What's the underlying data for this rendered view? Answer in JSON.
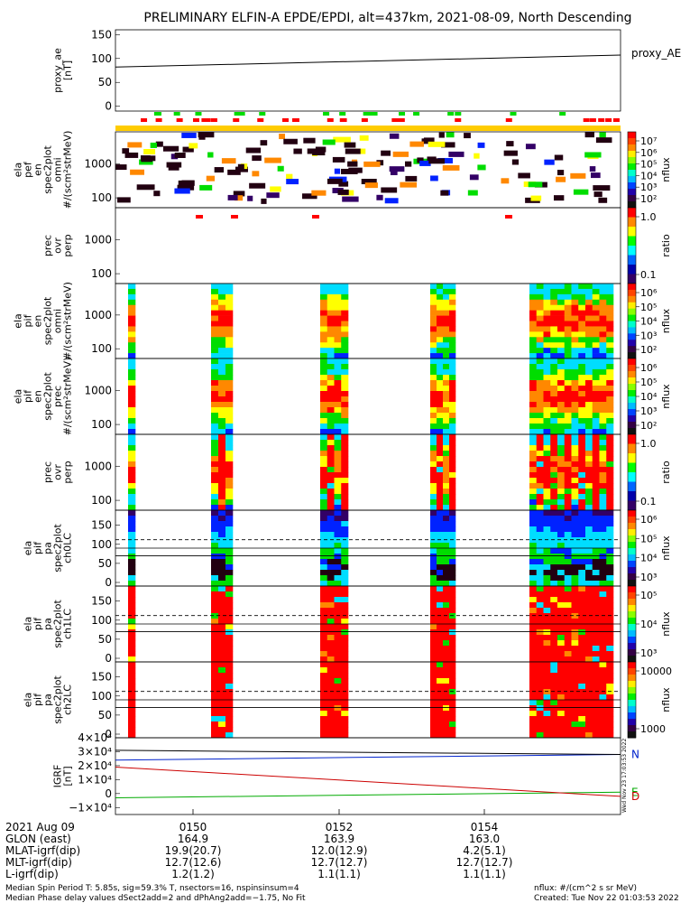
{
  "title": "PRELIMINARY ELFIN-A EPDE/EPDI, alt=437km, 2021-08-09, North Descending",
  "colors": {
    "red": "#ff0000",
    "orange": "#ff8800",
    "yellow": "#ffff00",
    "green": "#00dd00",
    "cyan": "#00ddff",
    "blue": "#0022ff",
    "purple": "#330066",
    "dark": "#220011"
  },
  "chart_data": [
    {
      "id": "proxy_ae",
      "type": "line",
      "ylabel": [
        "proxy_ae",
        "[nT]"
      ],
      "legend": "proxy_AE",
      "yticks": [
        "150",
        "100",
        "50",
        "0"
      ],
      "ylim": [
        -10,
        160
      ],
      "x": [
        "01:48",
        "01:56"
      ],
      "y": [
        82,
        107
      ]
    },
    {
      "id": "ela_pef_en_spec2plot_omni",
      "type": "heatmap",
      "ylabel": [
        "ela",
        "pef",
        "en",
        "spec2plot",
        "omni",
        "#/(scm²strMeV)"
      ],
      "yticks": [
        "1000",
        "100"
      ],
      "colorbar": {
        "label": "nflux",
        "ticks": [
          "10⁷",
          "10⁶",
          "10⁵",
          "10⁴",
          "10³",
          "10²"
        ]
      },
      "note": "sparse scattered pixels"
    },
    {
      "id": "prec_ovr_perp_pef",
      "type": "heatmap",
      "ylabel": [
        "prec",
        "ovr",
        "perp"
      ],
      "yticks": [
        "1000",
        "100"
      ],
      "colorbar": {
        "label": "ratio",
        "ticks": [
          "1.0",
          "0.1"
        ]
      }
    },
    {
      "id": "ela_pif_en_spec2plot_omni",
      "type": "heatmap",
      "ylabel": [
        "ela",
        "pif",
        "en",
        "spec2plot",
        "omni",
        "#/(scm²strMeV)"
      ],
      "yticks": [
        "1000",
        "100"
      ],
      "colorbar": {
        "label": "nflux",
        "ticks": [
          "10⁶",
          "10⁵",
          "10⁴",
          "10³",
          "10²"
        ]
      }
    },
    {
      "id": "ela_pif_en_spec2plot_prec",
      "type": "heatmap",
      "ylabel": [
        "ela",
        "pif",
        "en",
        "spec2plot",
        "prec",
        "#/(scm²strMeV)"
      ],
      "yticks": [
        "1000",
        "100"
      ],
      "colorbar": {
        "label": "nflux",
        "ticks": [
          "10⁶",
          "10⁵",
          "10⁴",
          "10³",
          "10²"
        ]
      }
    },
    {
      "id": "prec_ovr_perp_pif",
      "type": "heatmap",
      "ylabel": [
        "prec",
        "ovr",
        "perp"
      ],
      "yticks": [
        "1000",
        "100"
      ],
      "colorbar": {
        "label": "ratio",
        "ticks": [
          "1.0",
          "0.1"
        ]
      }
    },
    {
      "id": "ela_pif_pa_spec2plot_ch0LC",
      "type": "heatmap",
      "ylabel": [
        "ela",
        "pif",
        "pa",
        "spec2plot",
        "ch0LC"
      ],
      "yticks": [
        "150",
        "100",
        "50",
        "0"
      ],
      "colorbar": {
        "label": "nflux",
        "ticks": [
          "10⁶",
          "10⁵",
          "10⁴",
          "10³"
        ]
      }
    },
    {
      "id": "ela_pif_pa_spec2plot_ch1LC",
      "type": "heatmap",
      "ylabel": [
        "ela",
        "pif",
        "pa",
        "spec2plot",
        "ch1LC"
      ],
      "yticks": [
        "150",
        "100",
        "50",
        "0"
      ],
      "colorbar": {
        "label": "nflux",
        "ticks": [
          "10⁵",
          "10⁴",
          "10³"
        ]
      }
    },
    {
      "id": "ela_pif_pa_spec2plot_ch2LC",
      "type": "heatmap",
      "ylabel": [
        "ela",
        "pif",
        "pa",
        "spec2plot",
        "ch2LC"
      ],
      "yticks": [
        "150",
        "100",
        "50",
        "0"
      ],
      "colorbar": {
        "label": "nflux",
        "ticks": [
          "10000",
          "1000"
        ]
      }
    },
    {
      "id": "igrf",
      "type": "line",
      "ylabel": [
        "IGRF",
        "[nT]"
      ],
      "yticks": [
        "4×10⁴",
        "3×10⁴",
        "2×10⁴",
        "1×10⁴",
        "0",
        "−1×10⁴"
      ],
      "ylim": [
        -15000,
        40000
      ],
      "series": [
        {
          "name": "N",
          "color": "#0022cc",
          "y": [
            24000,
            28000
          ]
        },
        {
          "name": "E",
          "color": "#00aa00",
          "y": [
            -3000,
            1000
          ]
        },
        {
          "name": "D",
          "color": "#cc0000",
          "y": [
            19000,
            -2000
          ]
        },
        {
          "color": "#000000",
          "y": [
            31000,
            28000
          ]
        }
      ]
    }
  ],
  "xaxis": {
    "rows": [
      {
        "label": "2021 Aug 09",
        "values": [
          "0150",
          "0152",
          "0154"
        ]
      },
      {
        "label": "GLON (east)",
        "values": [
          "164.9",
          "163.9",
          "163.0"
        ]
      },
      {
        "label": "MLAT-igrf(dip)",
        "values": [
          "19.9(20.7)",
          "12.0(12.9)",
          "4.2(5.1)"
        ]
      },
      {
        "label": "MLT-igrf(dip)",
        "values": [
          "12.7(12.6)",
          "12.7(12.7)",
          "12.7(12.7)"
        ]
      },
      {
        "label": "L-igrf(dip)",
        "values": [
          "1.2(1.2)",
          "1.1(1.1)",
          "1.1(1.1)"
        ]
      }
    ]
  },
  "footer": {
    "left1": "Median Spin Period T: 5.85s, sig=59.3% T, nsectors=16, nspinsinsum=4",
    "left2": "Median Phase delay values dSect2add=2 and dPhAng2add=−1.75, No Fit",
    "right1": "nflux: #/(cm^2 s sr MeV)",
    "right2": "Created: Tue Nov 22 01:03:53 2022"
  },
  "stamp": "Wed Nov 23 17:03:53 2022"
}
